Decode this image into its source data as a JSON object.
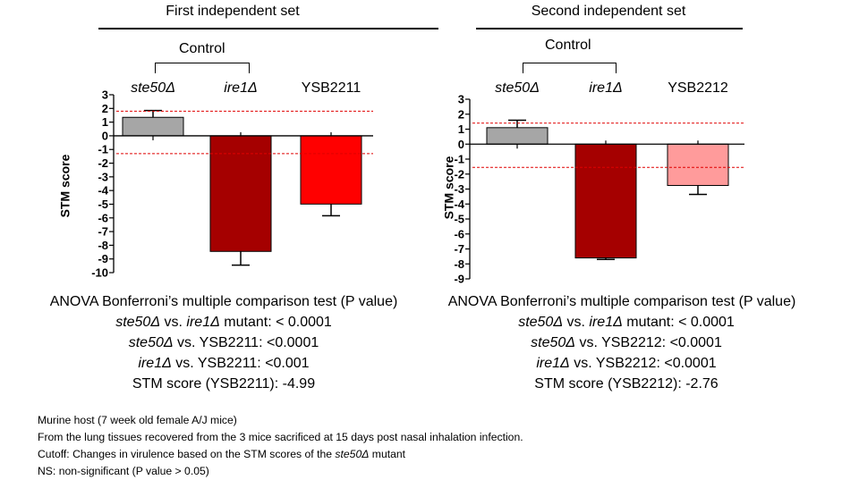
{
  "panels": [
    {
      "title": "First independent set",
      "control_label": "Control",
      "ylabel": "STM score",
      "categories": [
        {
          "pre": "",
          "ital": "ste50Δ",
          "post": ""
        },
        {
          "pre": "",
          "ital": "ire1Δ",
          "post": ""
        },
        {
          "pre": "YSB2211",
          "ital": "",
          "post": ""
        }
      ],
      "stats": {
        "heading": "ANOVA Bonferroni’s multiple comparison test (P value)",
        "lines": [
          {
            "a": "ste50Δ",
            "b": " vs. ",
            "c": "ire1Δ",
            "d": " mutant: < 0.0001"
          },
          {
            "a": "ste50Δ",
            "b": " vs. YSB2211: <0.0001",
            "c": "",
            "d": ""
          },
          {
            "a": "ire1Δ",
            "b": " vs. YSB2211: <0.001",
            "c": "",
            "d": ""
          },
          {
            "a": "",
            "b": "STM score (YSB2211): -4.99",
            "c": "",
            "d": ""
          }
        ]
      }
    },
    {
      "title": "Second independent set",
      "control_label": "Control",
      "ylabel": "STM score",
      "categories": [
        {
          "pre": "",
          "ital": "ste50Δ",
          "post": ""
        },
        {
          "pre": "",
          "ital": "ire1Δ",
          "post": ""
        },
        {
          "pre": "YSB2212",
          "ital": "",
          "post": ""
        }
      ],
      "stats": {
        "heading": "ANOVA Bonferroni’s multiple comparison test (P value)",
        "lines": [
          {
            "a": "ste50Δ",
            "b": " vs. ",
            "c": "ire1Δ",
            "d": " mutant: < 0.0001"
          },
          {
            "a": "ste50Δ",
            "b": " vs. YSB2212: <0.0001",
            "c": "",
            "d": ""
          },
          {
            "a": "ire1Δ",
            "b": " vs. YSB2212: <0.0001",
            "c": "",
            "d": ""
          },
          {
            "a": "",
            "b": "STM score (YSB2212): -2.76",
            "c": "",
            "d": ""
          }
        ]
      }
    }
  ],
  "footnotes": [
    {
      "pre": "Murine host (7 week old female A/J mice)",
      "ital": "",
      "post": ""
    },
    {
      "pre": "From  the lung tissues recovered from the 3 mice sacrificed at 15 days post nasal inhalation infection.",
      "ital": "",
      "post": ""
    },
    {
      "pre": "Cutoff: Changes in virulence based on the STM scores of the ",
      "ital": "ste50Δ",
      "post": " mutant"
    },
    {
      "pre": "NS: non-significant (P value > 0.05)",
      "ital": "",
      "post": ""
    }
  ],
  "chart_data": [
    {
      "type": "bar",
      "title": "First independent set",
      "ylabel": "STM score",
      "ylim": [
        -10,
        3
      ],
      "yticks": [
        3,
        2,
        1,
        0,
        -1,
        -2,
        -3,
        -4,
        -5,
        -6,
        -7,
        -8,
        -9,
        -10
      ],
      "categories": [
        "ste50Δ",
        "ire1Δ",
        "YSB2211"
      ],
      "values": [
        1.35,
        -8.45,
        -4.99
      ],
      "error_up": [
        0.5,
        0,
        0
      ],
      "error_down": [
        0,
        1.0,
        0.85
      ],
      "bar_colors": [
        "#a6a6a6",
        "#a50000",
        "#ff0000"
      ],
      "cutoff_lines": [
        1.8,
        -1.3
      ],
      "cutoff_color": "#e00000"
    },
    {
      "type": "bar",
      "title": "Second independent set",
      "ylabel": "STM score",
      "ylim": [
        -9,
        3
      ],
      "yticks": [
        3,
        2,
        1,
        0,
        -1,
        -2,
        -3,
        -4,
        -5,
        -6,
        -7,
        -8,
        -9
      ],
      "categories": [
        "ste50Δ",
        "ire1Δ",
        "YSB2212"
      ],
      "values": [
        1.1,
        -7.6,
        -2.76
      ],
      "error_up": [
        0.5,
        0,
        0
      ],
      "error_down": [
        0,
        0.1,
        0.6
      ],
      "bar_colors": [
        "#a6a6a6",
        "#a50000",
        "#ff9b9b"
      ],
      "cutoff_lines": [
        1.4,
        -1.55
      ],
      "cutoff_color": "#e00000"
    }
  ]
}
